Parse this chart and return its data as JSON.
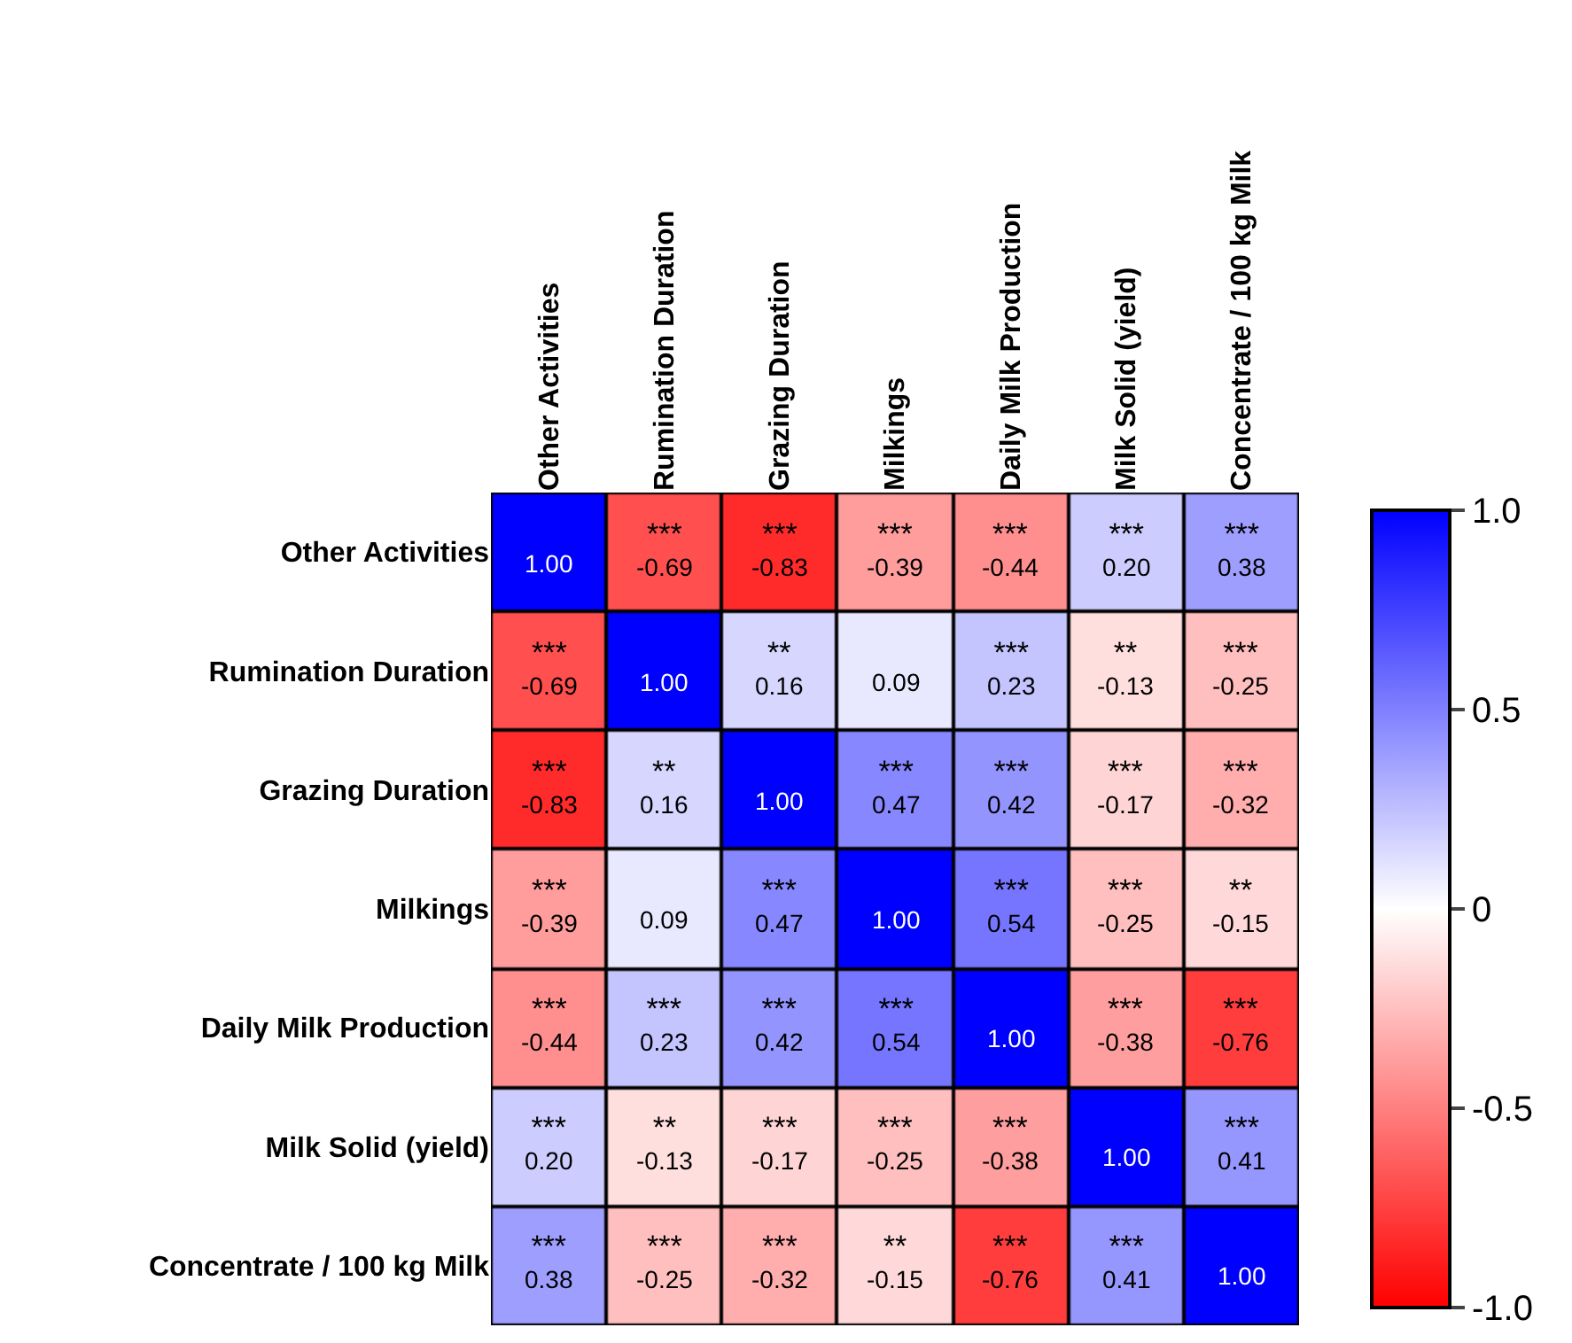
{
  "chart_data": {
    "type": "heatmap",
    "categories": [
      "Other Activities",
      "Rumination Duration",
      "Grazing Duration",
      "Milkings",
      "Daily Milk Production",
      "Milk Solid (yield)",
      "Concentrate / 100 kg Milk"
    ],
    "y_categories": [
      "Other Activities",
      "Rumination Duration",
      "Grazing Duration",
      "Milkings",
      "Daily Milk Production",
      "Milk Solid (yield)",
      "Concentrate / 100 kg Milk"
    ],
    "cells": [
      [
        1,
        -0.69,
        -0.83,
        -0.39,
        -0.44,
        0.2,
        0.38
      ],
      [
        -0.69,
        1,
        0.16,
        0.09,
        0.23,
        -0.13,
        -0.25
      ],
      [
        -0.83,
        0.16,
        1,
        0.47,
        0.42,
        -0.17,
        -0.32
      ],
      [
        -0.39,
        0.09,
        0.47,
        1,
        0.54,
        -0.25,
        -0.15
      ],
      [
        -0.44,
        0.23,
        0.42,
        0.54,
        1,
        -0.38,
        -0.76
      ],
      [
        0.2,
        -0.13,
        -0.17,
        -0.25,
        -0.38,
        1,
        0.41
      ],
      [
        0.38,
        -0.25,
        -0.32,
        -0.15,
        -0.76,
        0.41,
        1
      ]
    ],
    "cell_labels": [
      [
        "1.00",
        "***\n-0.69",
        "***\n-0.83",
        "***\n-0.39",
        "***\n-0.44",
        "***\n0.20",
        "***\n0.38"
      ],
      [
        "***\n-0.69",
        "1.00",
        "**\n0.16",
        "0.09",
        "***\n0.23",
        "**\n-0.13",
        "***\n-0.25"
      ],
      [
        "***\n-0.83",
        "**\n0.16",
        "1.00",
        "***\n0.47",
        "***\n0.42",
        "***\n-0.17",
        "***\n-0.32"
      ],
      [
        "***\n-0.39",
        "0.09",
        "***\n0.47",
        "1.00",
        "***\n0.54",
        "***\n-0.25",
        "**\n-0.15"
      ],
      [
        "***\n-0.44",
        "***\n0.23",
        "***\n0.42",
        "***\n0.54",
        "1.00",
        "***\n-0.38",
        "***\n-0.76"
      ],
      [
        "***\n0.20",
        "**\n-0.13",
        "***\n-0.17",
        "***\n-0.25",
        "***\n-0.38",
        "1.00",
        "***\n0.41"
      ],
      [
        "***\n0.38",
        "***\n-0.25",
        "***\n-0.32",
        "**\n-0.15",
        "***\n-0.76",
        "***\n0.41",
        "1.00"
      ]
    ],
    "clim": [
      -1,
      1
    ],
    "cticks": [
      {
        "value": -1,
        "label": "-1.0"
      },
      -0.5,
      0,
      0.5,
      {
        "value": 1,
        "label": "1.0"
      }
    ]
  }
}
